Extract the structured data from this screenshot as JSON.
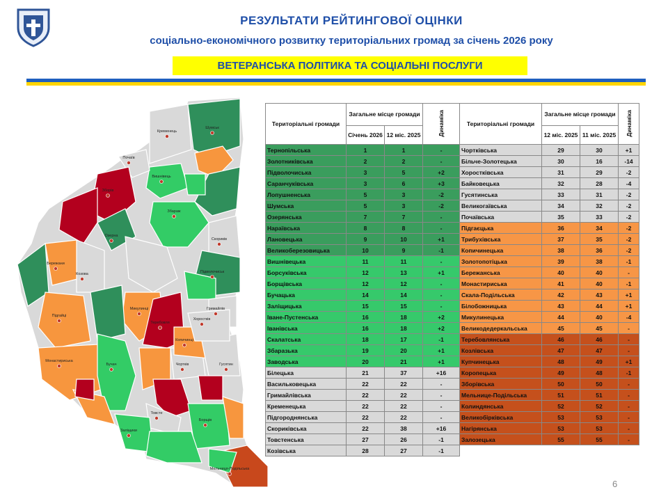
{
  "header": {
    "title": "РЕЗУЛЬТАТИ РЕЙТИНГОВОЇ ОЦІНКИ",
    "subtitle": "соціально-економічного розвитку територіальних громад за січень 2026 року",
    "section": "ВЕТЕРАНСЬКА ПОЛІТИКА ТА СОЦІАЛЬНІ ПОСЛУГИ"
  },
  "tables": [
    {
      "headers": {
        "name": "Територіальні громади",
        "group": "Загальне місце громади",
        "current": "Січень 2026",
        "previous": "12 міс. 2025",
        "dynamics": "Динаміка"
      },
      "rows": [
        {
          "name": "Тернопільська",
          "place": 1,
          "previous": 1,
          "dynamics": "-",
          "color": "#3a9d5d"
        },
        {
          "name": "Золотниківська",
          "place": 2,
          "previous": 2,
          "dynamics": "-",
          "color": "#3a9d5d"
        },
        {
          "name": "Підволочиська",
          "place": 3,
          "previous": 5,
          "dynamics": "+2",
          "color": "#3a9d5d"
        },
        {
          "name": "Саранчуківська",
          "place": 3,
          "previous": 6,
          "dynamics": "+3",
          "color": "#3a9d5d"
        },
        {
          "name": "Лопушненська",
          "place": 5,
          "previous": 3,
          "dynamics": "-2",
          "color": "#3a9d5d"
        },
        {
          "name": "Шумська",
          "place": 5,
          "previous": 3,
          "dynamics": "-2",
          "color": "#3a9d5d"
        },
        {
          "name": "Озерянська",
          "place": 7,
          "previous": 7,
          "dynamics": "-",
          "color": "#3a9d5d"
        },
        {
          "name": "Нараївська",
          "place": 8,
          "previous": 8,
          "dynamics": "-",
          "color": "#3a9d5d"
        },
        {
          "name": "Лановецька",
          "place": 9,
          "previous": 10,
          "dynamics": "+1",
          "color": "#3a9d5d"
        },
        {
          "name": "Великоберезовицька",
          "place": 10,
          "previous": 9,
          "dynamics": "-1",
          "color": "#3a9d5d"
        },
        {
          "name": "Вишнівецька",
          "place": 11,
          "previous": 11,
          "dynamics": "-",
          "color": "#36c96b"
        },
        {
          "name": "Борсуківська",
          "place": 12,
          "previous": 13,
          "dynamics": "+1",
          "color": "#36c96b"
        },
        {
          "name": "Борщівська",
          "place": 12,
          "previous": 12,
          "dynamics": "-",
          "color": "#36c96b"
        },
        {
          "name": "Бучацька",
          "place": 14,
          "previous": 14,
          "dynamics": "-",
          "color": "#36c96b"
        },
        {
          "name": "Заліщицька",
          "place": 15,
          "previous": 15,
          "dynamics": "-",
          "color": "#36c96b"
        },
        {
          "name": "Іване-Пустенська",
          "place": 16,
          "previous": 18,
          "dynamics": "+2",
          "color": "#36c96b"
        },
        {
          "name": "Іванівська",
          "place": 16,
          "previous": 18,
          "dynamics": "+2",
          "color": "#36c96b"
        },
        {
          "name": "Скалатська",
          "place": 18,
          "previous": 17,
          "dynamics": "-1",
          "color": "#36c96b"
        },
        {
          "name": "Збаразька",
          "place": 19,
          "previous": 20,
          "dynamics": "+1",
          "color": "#36c96b"
        },
        {
          "name": "Заводська",
          "place": 20,
          "previous": 21,
          "dynamics": "+1",
          "color": "#36c96b"
        },
        {
          "name": "Білецька",
          "place": 21,
          "previous": 37,
          "dynamics": "+16",
          "color": "#d9d9d9"
        },
        {
          "name": "Васильковецька",
          "place": 22,
          "previous": 22,
          "dynamics": "-",
          "color": "#d9d9d9"
        },
        {
          "name": "Гримайлівська",
          "place": 22,
          "previous": 22,
          "dynamics": "-",
          "color": "#d9d9d9"
        },
        {
          "name": "Кременецька",
          "place": 22,
          "previous": 22,
          "dynamics": "-",
          "color": "#d9d9d9"
        },
        {
          "name": "Підгороднянська",
          "place": 22,
          "previous": 22,
          "dynamics": "-",
          "color": "#d9d9d9"
        },
        {
          "name": "Скориківська",
          "place": 22,
          "previous": 38,
          "dynamics": "+16",
          "color": "#d9d9d9"
        },
        {
          "name": "Товстенська",
          "place": 27,
          "previous": 26,
          "dynamics": "-1",
          "color": "#d9d9d9"
        },
        {
          "name": "Козівська",
          "place": 28,
          "previous": 27,
          "dynamics": "-1",
          "color": "#d9d9d9"
        }
      ]
    },
    {
      "headers": {
        "name": "Територіальні громади",
        "group": "Загальне місце громади",
        "current": "12 міс. 2025",
        "previous": "11 міс. 2025",
        "dynamics": "Динаміка"
      },
      "rows": [
        {
          "name": "Чортківська",
          "place": 29,
          "previous": 30,
          "dynamics": "+1",
          "color": "#d9d9d9"
        },
        {
          "name": "Більче-Золотецька",
          "place": 30,
          "previous": 16,
          "dynamics": "-14",
          "color": "#d9d9d9"
        },
        {
          "name": "Хоростківська",
          "place": 31,
          "previous": 29,
          "dynamics": "-2",
          "color": "#d9d9d9"
        },
        {
          "name": "Байковецька",
          "place": 32,
          "previous": 28,
          "dynamics": "-4",
          "color": "#d9d9d9"
        },
        {
          "name": "Гусятинська",
          "place": 33,
          "previous": 31,
          "dynamics": "-2",
          "color": "#d9d9d9"
        },
        {
          "name": "Великогаївська",
          "place": 34,
          "previous": 32,
          "dynamics": "-2",
          "color": "#d9d9d9"
        },
        {
          "name": "Почаївська",
          "place": 35,
          "previous": 33,
          "dynamics": "-2",
          "color": "#d9d9d9"
        },
        {
          "name": "Підгаєцька",
          "place": 36,
          "previous": 34,
          "dynamics": "-2",
          "color": "#f79646"
        },
        {
          "name": "Трибухівська",
          "place": 37,
          "previous": 35,
          "dynamics": "-2",
          "color": "#f79646"
        },
        {
          "name": "Копичинецька",
          "place": 38,
          "previous": 36,
          "dynamics": "-2",
          "color": "#f79646"
        },
        {
          "name": "Золотопотіцька",
          "place": 39,
          "previous": 38,
          "dynamics": "-1",
          "color": "#f79646"
        },
        {
          "name": "Бережанська",
          "place": 40,
          "previous": 40,
          "dynamics": "-",
          "color": "#f79646"
        },
        {
          "name": "Монастириська",
          "place": 41,
          "previous": 40,
          "dynamics": "-1",
          "color": "#f79646"
        },
        {
          "name": "Скала-Подільська",
          "place": 42,
          "previous": 43,
          "dynamics": "+1",
          "color": "#f79646"
        },
        {
          "name": "Білобожницька",
          "place": 43,
          "previous": 44,
          "dynamics": "+1",
          "color": "#f79646"
        },
        {
          "name": "Микулинецька",
          "place": 44,
          "previous": 40,
          "dynamics": "-4",
          "color": "#f79646"
        },
        {
          "name": "Великодедеркальська",
          "place": 45,
          "previous": 45,
          "dynamics": "-",
          "color": "#f79646"
        },
        {
          "name": "Теребовлянська",
          "place": 46,
          "previous": 46,
          "dynamics": "-",
          "color": "#c5501c"
        },
        {
          "name": "Козлівська",
          "place": 47,
          "previous": 47,
          "dynamics": "-",
          "color": "#c5501c"
        },
        {
          "name": "Купчинецька",
          "place": 48,
          "previous": 49,
          "dynamics": "+1",
          "color": "#c5501c"
        },
        {
          "name": "Коропецька",
          "place": 49,
          "previous": 48,
          "dynamics": "-1",
          "color": "#c5501c"
        },
        {
          "name": "Зборівська",
          "place": 50,
          "previous": 50,
          "dynamics": "-",
          "color": "#c5501c"
        },
        {
          "name": "Мельнице-Подільська",
          "place": 51,
          "previous": 51,
          "dynamics": "-",
          "color": "#c5501c"
        },
        {
          "name": "Колиндянська",
          "place": 52,
          "previous": 52,
          "dynamics": "-",
          "color": "#c5501c"
        },
        {
          "name": "Великобірківська",
          "place": 53,
          "previous": 53,
          "dynamics": "-",
          "color": "#c5501c"
        },
        {
          "name": "Нагірянська",
          "place": 53,
          "previous": 53,
          "dynamics": "-",
          "color": "#c5501c"
        },
        {
          "name": "Залозецька",
          "place": 55,
          "previous": 55,
          "dynamics": "-",
          "color": "#c5501c"
        }
      ]
    }
  ],
  "map": {
    "labels": [
      "Кременець",
      "Шумськ",
      "Почаїв",
      "Вишнівець",
      "Збараж",
      "Скориків",
      "Підволочиськ",
      "Зборів",
      "Озерна",
      "Бережани",
      "Козова",
      "Підгайці",
      "Монастириська",
      "Бучач",
      "Микулинці",
      "Теребовля",
      "Хоростків",
      "Гримайлів",
      "Копичинці",
      "Чортків",
      "Гусятин",
      "Товсте",
      "Заліщики",
      "Борщів",
      "Мельниця-Подільська"
    ]
  },
  "page_number": "6"
}
